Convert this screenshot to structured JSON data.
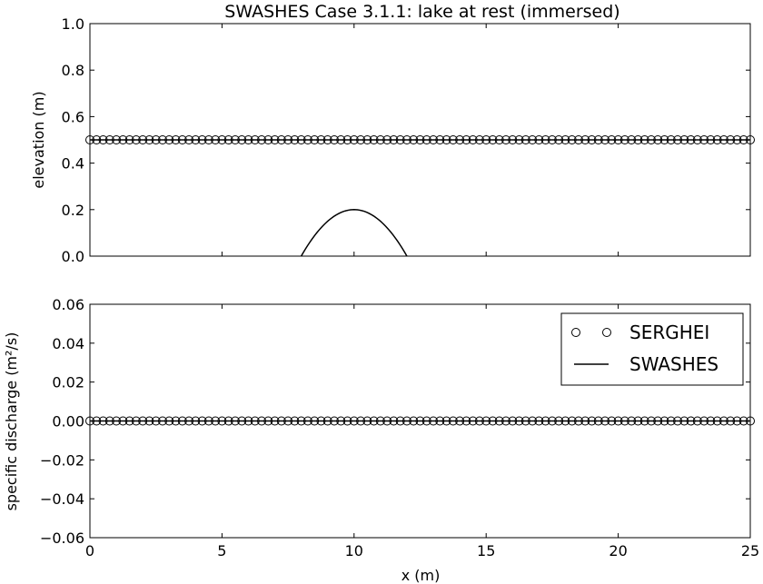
{
  "chart_data": [
    {
      "type": "line",
      "title": "SWASHES Case 3.1.1: lake at rest (immersed)",
      "xlabel": "",
      "ylabel": "elevation (m)",
      "xlim": [
        0,
        25
      ],
      "ylim": [
        0.0,
        1.0
      ],
      "yticks": [
        0.0,
        0.2,
        0.4,
        0.6,
        0.8,
        1.0
      ],
      "ytick_labels": [
        "0.0",
        "0.2",
        "0.4",
        "0.6",
        "0.8",
        "1.0"
      ],
      "series": [
        {
          "name": "SERGHEI",
          "style": "markers",
          "marker": "open-circle",
          "x_start": 0,
          "x_end": 25,
          "x_step": 0.25,
          "y": 0.5
        },
        {
          "name": "SWASHES",
          "style": "line",
          "x": [
            0,
            8,
            10,
            12,
            25
          ],
          "y": [
            0.5,
            0.5,
            0.5,
            0.5,
            0.5
          ]
        },
        {
          "name": "SWASHES",
          "style": "line",
          "bump": {
            "x_start": 8,
            "x_end": 12,
            "center": 10,
            "peak": 0.2,
            "base": 0.0
          }
        }
      ],
      "grid": false
    },
    {
      "type": "line",
      "title": "",
      "xlabel": "x (m)",
      "ylabel": "specific discharge (m²/s)",
      "xlim": [
        0,
        25
      ],
      "ylim": [
        -0.06,
        0.06
      ],
      "xticks": [
        0,
        5,
        10,
        15,
        20,
        25
      ],
      "xtick_labels": [
        "0",
        "5",
        "10",
        "15",
        "20",
        "25"
      ],
      "yticks": [
        -0.06,
        -0.04,
        -0.02,
        0.0,
        0.02,
        0.04,
        0.06
      ],
      "ytick_labels": [
        "−0.06",
        "−0.04",
        "−0.02",
        "0.00",
        "0.02",
        "0.04",
        "0.06"
      ],
      "series": [
        {
          "name": "SERGHEI",
          "style": "markers",
          "marker": "open-circle",
          "x_start": 0,
          "x_end": 25,
          "x_step": 0.25,
          "y": 0.0
        },
        {
          "name": "SWASHES",
          "style": "line",
          "x": [
            0,
            25
          ],
          "y": [
            0.0,
            0.0
          ]
        }
      ],
      "legend": {
        "position": "top-right",
        "entries": [
          "SERGHEI",
          "SWASHES"
        ]
      },
      "grid": false
    }
  ]
}
